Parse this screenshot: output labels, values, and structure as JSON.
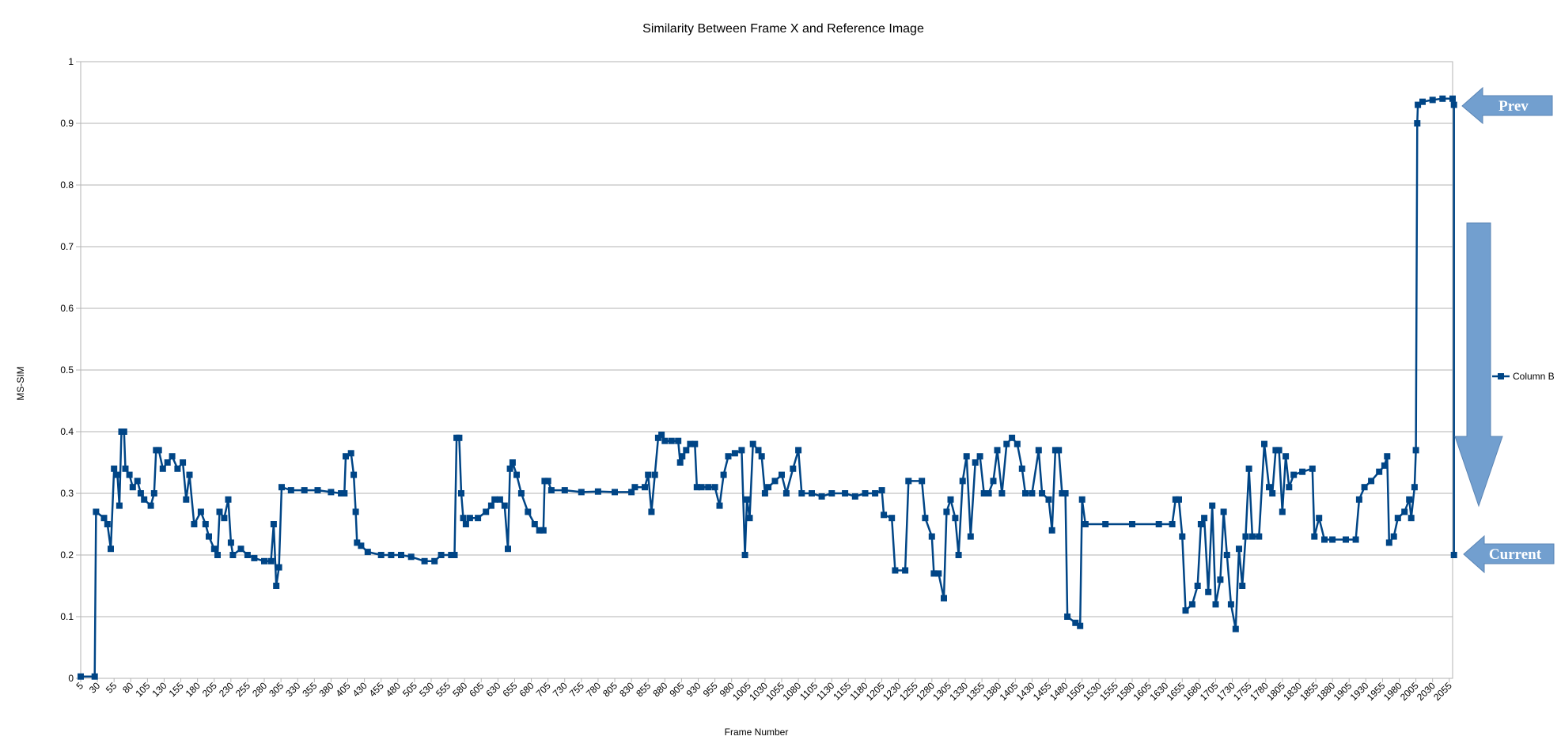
{
  "chart_data": {
    "type": "line",
    "title": "Similarity Between Frame X and Reference Image",
    "xlabel": "Frame Number",
    "ylabel": "MS-SIM",
    "ylim": [
      0,
      1
    ],
    "yticks": [
      "0",
      "0.1",
      "0.2",
      "0.3",
      "0.4",
      "0.5",
      "0.6",
      "0.7",
      "0.8",
      "0.9",
      "1"
    ],
    "xlim": [
      5,
      2060
    ],
    "xticks": [
      5,
      30,
      55,
      80,
      105,
      130,
      155,
      180,
      205,
      230,
      255,
      280,
      305,
      330,
      355,
      380,
      405,
      430,
      455,
      480,
      505,
      530,
      555,
      580,
      605,
      630,
      655,
      680,
      705,
      730,
      755,
      780,
      805,
      830,
      855,
      880,
      905,
      930,
      955,
      980,
      1005,
      1030,
      1055,
      1080,
      1105,
      1130,
      1155,
      1180,
      1205,
      1230,
      1255,
      1280,
      1305,
      1330,
      1355,
      1380,
      1405,
      1430,
      1455,
      1480,
      1505,
      1530,
      1555,
      1580,
      1605,
      1630,
      1655,
      1680,
      1705,
      1730,
      1755,
      1780,
      1805,
      1830,
      1855,
      1880,
      1905,
      1930,
      1955,
      1980,
      2005,
      2030,
      2055
    ],
    "grid": true,
    "legend_position": "right",
    "series": [
      {
        "name": "Column B",
        "color": "#004586",
        "points": [
          [
            5,
            0.003
          ],
          [
            26,
            0.003
          ],
          [
            28,
            0.27
          ],
          [
            40,
            0.26
          ],
          [
            45,
            0.25
          ],
          [
            50,
            0.21
          ],
          [
            55,
            0.34
          ],
          [
            60,
            0.33
          ],
          [
            63,
            0.28
          ],
          [
            66,
            0.4
          ],
          [
            70,
            0.4
          ],
          [
            72,
            0.34
          ],
          [
            78,
            0.33
          ],
          [
            83,
            0.31
          ],
          [
            90,
            0.32
          ],
          [
            95,
            0.3
          ],
          [
            100,
            0.29
          ],
          [
            110,
            0.28
          ],
          [
            115,
            0.3
          ],
          [
            118,
            0.37
          ],
          [
            122,
            0.37
          ],
          [
            128,
            0.34
          ],
          [
            135,
            0.35
          ],
          [
            142,
            0.36
          ],
          [
            150,
            0.34
          ],
          [
            158,
            0.35
          ],
          [
            163,
            0.29
          ],
          [
            168,
            0.33
          ],
          [
            175,
            0.25
          ],
          [
            185,
            0.27
          ],
          [
            192,
            0.25
          ],
          [
            197,
            0.23
          ],
          [
            205,
            0.21
          ],
          [
            210,
            0.2
          ],
          [
            213,
            0.27
          ],
          [
            220,
            0.26
          ],
          [
            226,
            0.29
          ],
          [
            230,
            0.22
          ],
          [
            233,
            0.2
          ],
          [
            245,
            0.21
          ],
          [
            255,
            0.2
          ],
          [
            265,
            0.195
          ],
          [
            280,
            0.19
          ],
          [
            290,
            0.19
          ],
          [
            294,
            0.25
          ],
          [
            298,
            0.15
          ],
          [
            302,
            0.18
          ],
          [
            306,
            0.31
          ],
          [
            320,
            0.305
          ],
          [
            340,
            0.305
          ],
          [
            360,
            0.305
          ],
          [
            380,
            0.302
          ],
          [
            395,
            0.3
          ],
          [
            400,
            0.3
          ],
          [
            402,
            0.36
          ],
          [
            410,
            0.365
          ],
          [
            414,
            0.33
          ],
          [
            417,
            0.27
          ],
          [
            419,
            0.22
          ],
          [
            425,
            0.215
          ],
          [
            435,
            0.205
          ],
          [
            455,
            0.2
          ],
          [
            470,
            0.2
          ],
          [
            485,
            0.2
          ],
          [
            500,
            0.197
          ],
          [
            520,
            0.19
          ],
          [
            535,
            0.19
          ],
          [
            545,
            0.2
          ],
          [
            560,
            0.2
          ],
          [
            565,
            0.2
          ],
          [
            568,
            0.39
          ],
          [
            572,
            0.39
          ],
          [
            575,
            0.3
          ],
          [
            578,
            0.26
          ],
          [
            582,
            0.25
          ],
          [
            588,
            0.26
          ],
          [
            600,
            0.26
          ],
          [
            612,
            0.27
          ],
          [
            620,
            0.28
          ],
          [
            625,
            0.29
          ],
          [
            633,
            0.29
          ],
          [
            640,
            0.28
          ],
          [
            645,
            0.21
          ],
          [
            648,
            0.34
          ],
          [
            652,
            0.35
          ],
          [
            658,
            0.33
          ],
          [
            665,
            0.3
          ],
          [
            675,
            0.27
          ],
          [
            685,
            0.25
          ],
          [
            692,
            0.24
          ],
          [
            698,
            0.24
          ],
          [
            700,
            0.32
          ],
          [
            705,
            0.32
          ],
          [
            710,
            0.305
          ],
          [
            730,
            0.305
          ],
          [
            755,
            0.302
          ],
          [
            780,
            0.303
          ],
          [
            805,
            0.302
          ],
          [
            830,
            0.302
          ],
          [
            835,
            0.31
          ],
          [
            850,
            0.31
          ],
          [
            855,
            0.33
          ],
          [
            860,
            0.27
          ],
          [
            865,
            0.33
          ],
          [
            870,
            0.39
          ],
          [
            875,
            0.395
          ],
          [
            880,
            0.385
          ],
          [
            890,
            0.385
          ],
          [
            900,
            0.385
          ],
          [
            903,
            0.35
          ],
          [
            906,
            0.36
          ],
          [
            912,
            0.37
          ],
          [
            918,
            0.38
          ],
          [
            925,
            0.38
          ],
          [
            928,
            0.31
          ],
          [
            935,
            0.31
          ],
          [
            945,
            0.31
          ],
          [
            955,
            0.31
          ],
          [
            962,
            0.28
          ],
          [
            968,
            0.33
          ],
          [
            975,
            0.36
          ],
          [
            985,
            0.365
          ],
          [
            995,
            0.37
          ],
          [
            1000,
            0.2
          ],
          [
            1003,
            0.29
          ],
          [
            1007,
            0.26
          ],
          [
            1012,
            0.38
          ],
          [
            1020,
            0.37
          ],
          [
            1025,
            0.36
          ],
          [
            1030,
            0.3
          ],
          [
            1035,
            0.31
          ],
          [
            1045,
            0.32
          ],
          [
            1055,
            0.33
          ],
          [
            1062,
            0.3
          ],
          [
            1072,
            0.34
          ],
          [
            1080,
            0.37
          ],
          [
            1085,
            0.3
          ],
          [
            1100,
            0.3
          ],
          [
            1115,
            0.295
          ],
          [
            1130,
            0.3
          ],
          [
            1150,
            0.3
          ],
          [
            1165,
            0.295
          ],
          [
            1180,
            0.3
          ],
          [
            1195,
            0.3
          ],
          [
            1205,
            0.305
          ],
          [
            1208,
            0.265
          ],
          [
            1220,
            0.26
          ],
          [
            1225,
            0.175
          ],
          [
            1240,
            0.175
          ],
          [
            1245,
            0.32
          ],
          [
            1265,
            0.32
          ],
          [
            1270,
            0.26
          ],
          [
            1280,
            0.23
          ],
          [
            1283,
            0.17
          ],
          [
            1290,
            0.17
          ],
          [
            1298,
            0.13
          ],
          [
            1302,
            0.27
          ],
          [
            1308,
            0.29
          ],
          [
            1315,
            0.26
          ],
          [
            1320,
            0.2
          ],
          [
            1326,
            0.32
          ],
          [
            1332,
            0.36
          ],
          [
            1338,
            0.23
          ],
          [
            1345,
            0.35
          ],
          [
            1352,
            0.36
          ],
          [
            1358,
            0.3
          ],
          [
            1365,
            0.3
          ],
          [
            1372,
            0.32
          ],
          [
            1378,
            0.37
          ],
          [
            1385,
            0.3
          ],
          [
            1392,
            0.38
          ],
          [
            1400,
            0.39
          ],
          [
            1408,
            0.38
          ],
          [
            1415,
            0.34
          ],
          [
            1420,
            0.3
          ],
          [
            1430,
            0.3
          ],
          [
            1440,
            0.37
          ],
          [
            1445,
            0.3
          ],
          [
            1455,
            0.29
          ],
          [
            1460,
            0.24
          ],
          [
            1465,
            0.37
          ],
          [
            1470,
            0.37
          ],
          [
            1475,
            0.3
          ],
          [
            1480,
            0.3
          ],
          [
            1483,
            0.1
          ],
          [
            1495,
            0.09
          ],
          [
            1502,
            0.085
          ],
          [
            1505,
            0.29
          ],
          [
            1510,
            0.25
          ],
          [
            1540,
            0.25
          ],
          [
            1580,
            0.25
          ],
          [
            1620,
            0.25
          ],
          [
            1640,
            0.25
          ],
          [
            1645,
            0.29
          ],
          [
            1650,
            0.29
          ],
          [
            1655,
            0.23
          ],
          [
            1660,
            0.11
          ],
          [
            1670,
            0.12
          ],
          [
            1678,
            0.15
          ],
          [
            1683,
            0.25
          ],
          [
            1688,
            0.26
          ],
          [
            1694,
            0.14
          ],
          [
            1700,
            0.28
          ],
          [
            1705,
            0.12
          ],
          [
            1712,
            0.16
          ],
          [
            1717,
            0.27
          ],
          [
            1722,
            0.2
          ],
          [
            1728,
            0.12
          ],
          [
            1735,
            0.08
          ],
          [
            1740,
            0.21
          ],
          [
            1745,
            0.15
          ],
          [
            1750,
            0.23
          ],
          [
            1755,
            0.34
          ],
          [
            1760,
            0.23
          ],
          [
            1770,
            0.23
          ],
          [
            1778,
            0.38
          ],
          [
            1785,
            0.31
          ],
          [
            1790,
            0.3
          ],
          [
            1795,
            0.37
          ],
          [
            1800,
            0.37
          ],
          [
            1805,
            0.27
          ],
          [
            1810,
            0.36
          ],
          [
            1815,
            0.31
          ],
          [
            1822,
            0.33
          ],
          [
            1835,
            0.335
          ],
          [
            1850,
            0.34
          ],
          [
            1853,
            0.23
          ],
          [
            1860,
            0.26
          ],
          [
            1868,
            0.225
          ],
          [
            1880,
            0.225
          ],
          [
            1900,
            0.225
          ],
          [
            1915,
            0.225
          ],
          [
            1920,
            0.29
          ],
          [
            1928,
            0.31
          ],
          [
            1938,
            0.32
          ],
          [
            1950,
            0.335
          ],
          [
            1958,
            0.345
          ],
          [
            1962,
            0.36
          ],
          [
            1965,
            0.22
          ],
          [
            1972,
            0.23
          ],
          [
            1978,
            0.26
          ],
          [
            1988,
            0.27
          ],
          [
            1995,
            0.29
          ],
          [
            1998,
            0.26
          ],
          [
            2003,
            0.31
          ],
          [
            2005,
            0.37
          ],
          [
            2007,
            0.9
          ],
          [
            2008,
            0.93
          ],
          [
            2015,
            0.935
          ],
          [
            2030,
            0.938
          ],
          [
            2045,
            0.94
          ],
          [
            2060,
            0.94
          ],
          [
            2062,
            0.93
          ],
          [
            2062,
            0.2
          ]
        ]
      }
    ],
    "annotations": [
      {
        "label": "Prev",
        "color": "#729fcf",
        "at_y": 0.929
      },
      {
        "label": "Current",
        "color": "#729fcf",
        "at_y": 0.2
      }
    ]
  }
}
